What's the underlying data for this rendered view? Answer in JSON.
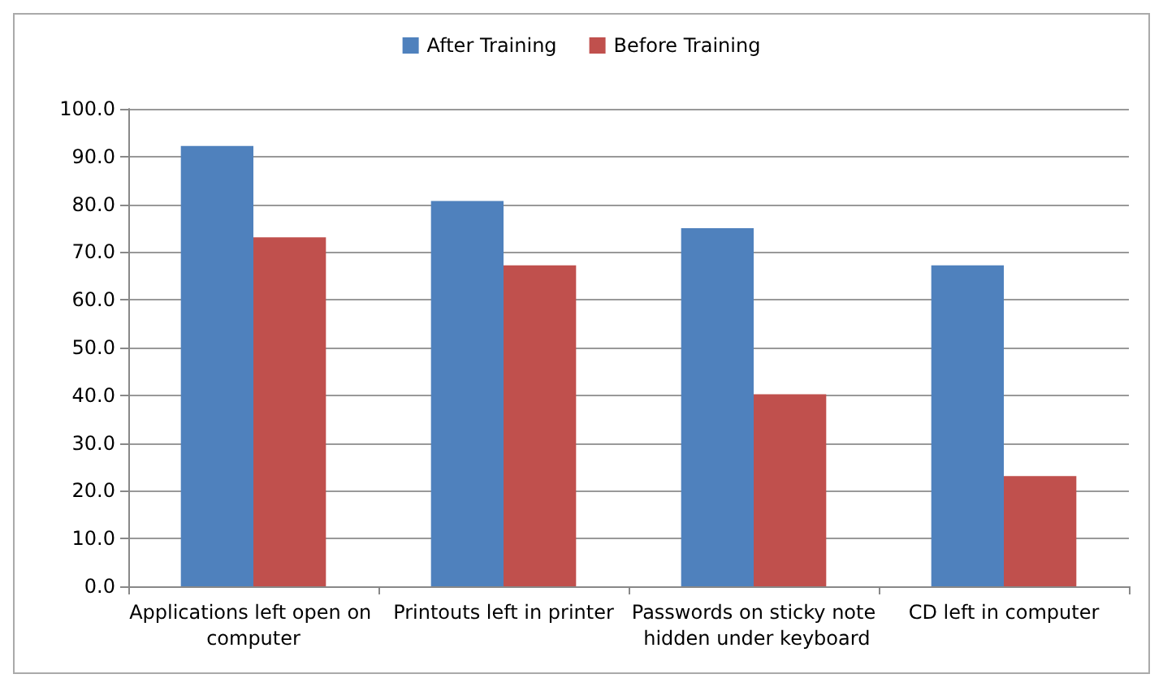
{
  "chart_data": {
    "type": "bar",
    "categories": [
      "Applications left open on computer",
      "Printouts left in printer",
      "Passwords on sticky note hidden under keyboard",
      "CD left in computer"
    ],
    "series": [
      {
        "name": "After Training",
        "color": "#4f81bd",
        "values": [
          92.2,
          80.7,
          75.0,
          67.2
        ]
      },
      {
        "name": "Before Training",
        "color": "#c0504d",
        "values": [
          73.1,
          67.2,
          40.2,
          23.1
        ]
      }
    ],
    "ylim": [
      0,
      100
    ],
    "yticks": [
      {
        "value": 0,
        "label": "0.0"
      },
      {
        "value": 10,
        "label": "10.0"
      },
      {
        "value": 20,
        "label": "20.0"
      },
      {
        "value": 30,
        "label": "30.0"
      },
      {
        "value": 40,
        "label": "40.0"
      },
      {
        "value": 50,
        "label": "50.0"
      },
      {
        "value": 60,
        "label": "60.0"
      },
      {
        "value": 70,
        "label": "70.0"
      },
      {
        "value": 80,
        "label": "80.0"
      },
      {
        "value": 90,
        "label": "90.0"
      },
      {
        "value": 100,
        "label": "100.0"
      }
    ],
    "grid": "y",
    "legend": "top"
  }
}
